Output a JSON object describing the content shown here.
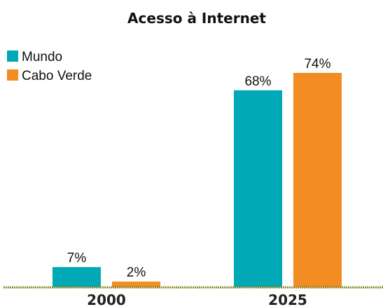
{
  "chart_data": {
    "type": "bar",
    "title": "Acesso à Internet",
    "categories": [
      "2000",
      "2025"
    ],
    "series": [
      {
        "name": "Mundo",
        "values": [
          7,
          68
        ],
        "labels": [
          "7%",
          "68%"
        ],
        "color": "#00A9B5"
      },
      {
        "name": "Cabo Verde",
        "values": [
          2,
          74
        ],
        "labels": [
          "2%",
          "74%"
        ],
        "color": "#F28C23"
      }
    ],
    "unit": "%",
    "ylim": [
      0,
      74
    ],
    "legend_position": "top-left",
    "grid": false,
    "baseline_color": "#8C8C2E"
  }
}
